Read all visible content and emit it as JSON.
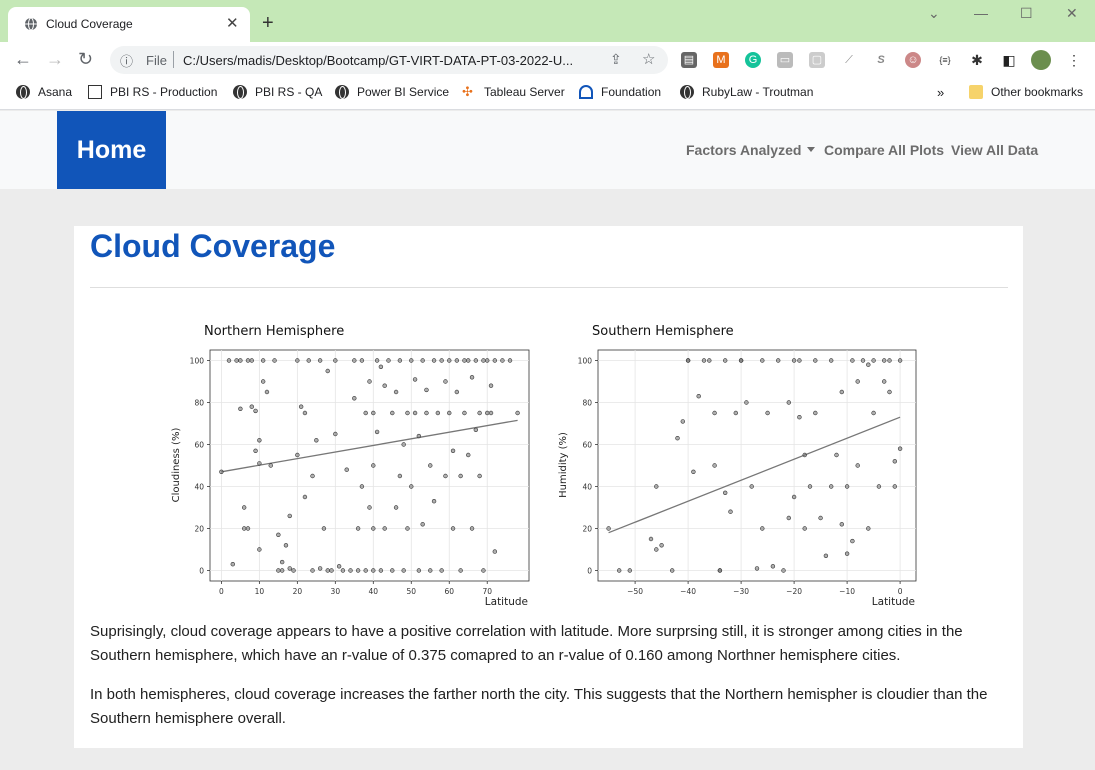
{
  "browser": {
    "tab_title": "Cloud Coverage",
    "tab_close": "✕",
    "new_tab": "+",
    "omnibox_scheme": "File",
    "url": "C:/Users/madis/Desktop/Bootcamp/GT-VIRT-DATA-PT-03-2022-U...",
    "bookmarks": [
      "Asana",
      "PBI RS - Production",
      "PBI RS - QA",
      "Power BI Service",
      "Tableau Server",
      "Foundation",
      "RubyLaw - Troutman"
    ],
    "bookmarks_overflow": "»",
    "other_bookmarks": "Other bookmarks"
  },
  "nav": {
    "brand": "Home",
    "links": [
      "Factors Analyzed",
      "Compare All Plots",
      "View All Data"
    ]
  },
  "page": {
    "title": "Cloud Coverage",
    "paragraph1": "Suprisingly, cloud coverage appears to have a positive correlation with latitude. More surprsing still, it is stronger among cities in the Southern hemisphere, which have an r-value of 0.375 comapred to an r-value of 0.160 among Northner hemisphere cities.",
    "paragraph2": "In both hemispheres, cloud coverage increases the farther north the city. This suggests that the Northern hemispher is cloudier than the Southern hemisphere overall."
  },
  "colors": {
    "brand": "#1155b9",
    "tab_strip": "#c5e8b7"
  },
  "chart_data": [
    {
      "type": "scatter",
      "title": "Northern Hemisphere",
      "xlabel": "Latitude",
      "ylabel": "Cloudiness (%)",
      "xlim": [
        -3,
        81
      ],
      "ylim": [
        -5,
        105
      ],
      "xticks": [
        0,
        10,
        20,
        30,
        40,
        50,
        60,
        70
      ],
      "yticks": [
        0,
        20,
        40,
        60,
        80,
        100
      ],
      "grid": true,
      "regression": {
        "x": [
          0,
          78
        ],
        "y": [
          47,
          71.5
        ]
      },
      "points": [
        [
          0,
          47
        ],
        [
          2,
          100
        ],
        [
          3,
          3
        ],
        [
          4,
          100
        ],
        [
          5,
          77
        ],
        [
          5,
          100
        ],
        [
          6,
          30
        ],
        [
          6,
          20
        ],
        [
          7,
          100
        ],
        [
          7,
          20
        ],
        [
          8,
          78
        ],
        [
          8,
          100
        ],
        [
          9,
          57
        ],
        [
          9,
          76
        ],
        [
          10,
          10
        ],
        [
          10,
          51
        ],
        [
          10,
          62
        ],
        [
          11,
          100
        ],
        [
          11,
          90
        ],
        [
          12,
          85
        ],
        [
          13,
          50
        ],
        [
          14,
          100
        ],
        [
          15,
          0
        ],
        [
          15,
          17
        ],
        [
          16,
          0
        ],
        [
          16,
          4
        ],
        [
          17,
          12
        ],
        [
          18,
          1
        ],
        [
          18,
          26
        ],
        [
          19,
          0
        ],
        [
          20,
          100
        ],
        [
          20,
          55
        ],
        [
          21,
          78
        ],
        [
          22,
          75
        ],
        [
          22,
          35
        ],
        [
          23,
          100
        ],
        [
          24,
          0
        ],
        [
          24,
          45
        ],
        [
          25,
          62
        ],
        [
          26,
          1
        ],
        [
          26,
          100
        ],
        [
          27,
          20
        ],
        [
          28,
          95
        ],
        [
          28,
          0
        ],
        [
          29,
          0
        ],
        [
          30,
          100
        ],
        [
          30,
          65
        ],
        [
          31,
          2
        ],
        [
          32,
          0
        ],
        [
          33,
          48
        ],
        [
          34,
          0
        ],
        [
          35,
          100
        ],
        [
          35,
          82
        ],
        [
          36,
          0
        ],
        [
          36,
          20
        ],
        [
          37,
          40
        ],
        [
          37,
          100
        ],
        [
          38,
          75
        ],
        [
          38,
          0
        ],
        [
          39,
          30
        ],
        [
          39,
          90
        ],
        [
          40,
          0
        ],
        [
          40,
          20
        ],
        [
          40,
          50
        ],
        [
          40,
          75
        ],
        [
          41,
          100
        ],
        [
          41,
          66
        ],
        [
          42,
          0
        ],
        [
          42,
          97
        ],
        [
          43,
          88
        ],
        [
          43,
          20
        ],
        [
          44,
          100
        ],
        [
          45,
          75
        ],
        [
          45,
          0
        ],
        [
          46,
          30
        ],
        [
          46,
          85
        ],
        [
          47,
          100
        ],
        [
          47,
          45
        ],
        [
          48,
          60
        ],
        [
          48,
          0
        ],
        [
          49,
          75
        ],
        [
          49,
          20
        ],
        [
          50,
          100
        ],
        [
          50,
          40
        ],
        [
          51,
          91
        ],
        [
          51,
          75
        ],
        [
          52,
          0
        ],
        [
          52,
          64
        ],
        [
          53,
          100
        ],
        [
          53,
          22
        ],
        [
          54,
          75
        ],
        [
          54,
          86
        ],
        [
          55,
          0
        ],
        [
          55,
          50
        ],
        [
          56,
          100
        ],
        [
          56,
          33
        ],
        [
          57,
          75
        ],
        [
          58,
          100
        ],
        [
          58,
          0
        ],
        [
          59,
          45
        ],
        [
          59,
          90
        ],
        [
          60,
          100
        ],
        [
          60,
          75
        ],
        [
          61,
          57
        ],
        [
          61,
          20
        ],
        [
          62,
          100
        ],
        [
          62,
          85
        ],
        [
          63,
          0
        ],
        [
          63,
          45
        ],
        [
          64,
          100
        ],
        [
          64,
          75
        ],
        [
          65,
          55
        ],
        [
          65,
          100
        ],
        [
          66,
          92
        ],
        [
          66,
          20
        ],
        [
          67,
          100
        ],
        [
          67,
          67
        ],
        [
          68,
          75
        ],
        [
          68,
          45
        ],
        [
          69,
          100
        ],
        [
          69,
          0
        ],
        [
          70,
          75
        ],
        [
          70,
          100
        ],
        [
          71,
          88
        ],
        [
          71,
          75
        ],
        [
          72,
          100
        ],
        [
          72,
          9
        ],
        [
          74,
          100
        ],
        [
          76,
          100
        ],
        [
          78,
          75
        ]
      ]
    },
    {
      "type": "scatter",
      "title": "Southern Hemisphere",
      "xlabel": "Latitude",
      "ylabel": "Humidity (%)",
      "xlim": [
        -57,
        3
      ],
      "ylim": [
        -5,
        105
      ],
      "xticks": [
        -50,
        -40,
        -30,
        -20,
        -10,
        0
      ],
      "yticks": [
        0,
        20,
        40,
        60,
        80,
        100
      ],
      "grid": true,
      "regression": {
        "x": [
          -55,
          0
        ],
        "y": [
          18,
          73
        ]
      },
      "points": [
        [
          -55,
          20
        ],
        [
          -53,
          0
        ],
        [
          -51,
          0
        ],
        [
          -47,
          15
        ],
        [
          -46,
          40
        ],
        [
          -46,
          10
        ],
        [
          -45,
          12
        ],
        [
          -43,
          0
        ],
        [
          -42,
          63
        ],
        [
          -41,
          71
        ],
        [
          -40,
          100
        ],
        [
          -40,
          100
        ],
        [
          -39,
          47
        ],
        [
          -38,
          83
        ],
        [
          -37,
          100
        ],
        [
          -36,
          100
        ],
        [
          -35,
          75
        ],
        [
          -35,
          50
        ],
        [
          -34,
          0
        ],
        [
          -34,
          0
        ],
        [
          -33,
          37
        ],
        [
          -33,
          100
        ],
        [
          -32,
          28
        ],
        [
          -31,
          75
        ],
        [
          -30,
          100
        ],
        [
          -30,
          100
        ],
        [
          -29,
          80
        ],
        [
          -28,
          40
        ],
        [
          -27,
          1
        ],
        [
          -26,
          20
        ],
        [
          -26,
          100
        ],
        [
          -25,
          75
        ],
        [
          -24,
          2
        ],
        [
          -23,
          100
        ],
        [
          -22,
          0
        ],
        [
          -21,
          80
        ],
        [
          -21,
          25
        ],
        [
          -20,
          100
        ],
        [
          -20,
          35
        ],
        [
          -19,
          100
        ],
        [
          -19,
          73
        ],
        [
          -18,
          20
        ],
        [
          -18,
          55
        ],
        [
          -17,
          40
        ],
        [
          -16,
          100
        ],
        [
          -16,
          75
        ],
        [
          -15,
          25
        ],
        [
          -14,
          7
        ],
        [
          -13,
          100
        ],
        [
          -13,
          40
        ],
        [
          -12,
          55
        ],
        [
          -11,
          85
        ],
        [
          -11,
          22
        ],
        [
          -10,
          8
        ],
        [
          -10,
          40
        ],
        [
          -9,
          100
        ],
        [
          -9,
          14
        ],
        [
          -8,
          90
        ],
        [
          -8,
          50
        ],
        [
          -7,
          100
        ],
        [
          -6,
          98
        ],
        [
          -6,
          20
        ],
        [
          -5,
          75
        ],
        [
          -5,
          100
        ],
        [
          -4,
          40
        ],
        [
          -3,
          90
        ],
        [
          -3,
          100
        ],
        [
          -2,
          85
        ],
        [
          -2,
          100
        ],
        [
          -1,
          52
        ],
        [
          -1,
          40
        ],
        [
          0,
          58
        ],
        [
          0,
          100
        ]
      ]
    }
  ]
}
